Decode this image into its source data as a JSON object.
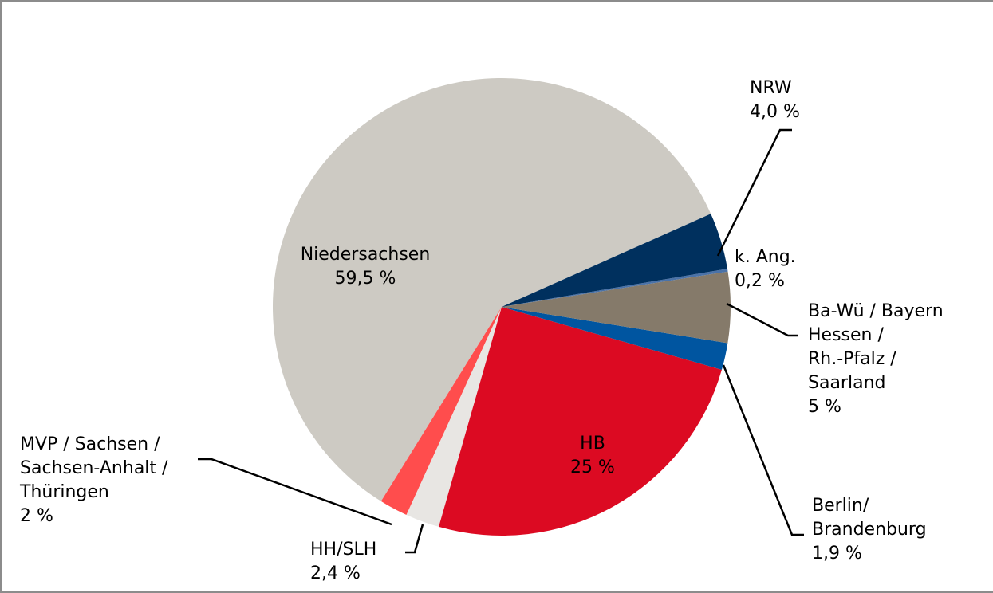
{
  "chart_data": {
    "type": "pie",
    "categories": [
      "NRW",
      "k. Ang.",
      "Ba-Wü / Bayern\nHessen /\nRh.-Pfalz /\nSaarland",
      "Berlin/\nBrandenburg",
      "HB",
      "HH/SLH",
      "MVP / Sachsen /\nSachsen-Anhalt /\nThüringen",
      "Niedersachsen"
    ],
    "values": [
      4.0,
      0.2,
      5,
      1.9,
      25,
      2.4,
      2,
      59.5
    ],
    "value_labels": [
      "4,0 %",
      "0,2 %",
      "5 %",
      "1,9 %",
      "25 %",
      "2,4 %",
      "2 %",
      "59,5 %"
    ],
    "colors": [
      "#00305e",
      "#4a72a8",
      "#857a6a",
      "#0055a0",
      "#dc0a22",
      "#e8e6e3",
      "#ff4d4d",
      "#cdcac3"
    ]
  }
}
